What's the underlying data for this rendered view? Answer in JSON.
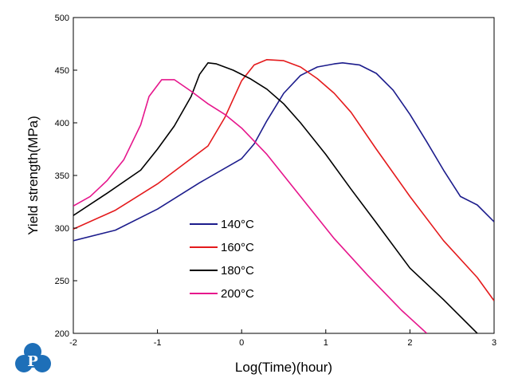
{
  "logo": {
    "letter": "P",
    "color": "#1e6fb8"
  },
  "chart_data": {
    "type": "line",
    "xlabel": "Log(Time)(hour)",
    "ylabel": "Yield strength(MPa)",
    "xlim": [
      -2,
      3
    ],
    "ylim": [
      200,
      500
    ],
    "xticks": [
      -2,
      -1,
      0,
      1,
      2,
      3
    ],
    "yticks": [
      200,
      250,
      300,
      350,
      400,
      450,
      500
    ],
    "grid": false,
    "legend_position": "lower-left",
    "series": [
      {
        "name": "140°C",
        "color": "#1c1c8c",
        "points": [
          [
            -2,
            288
          ],
          [
            -1.5,
            298
          ],
          [
            -1,
            318
          ],
          [
            -0.5,
            343
          ],
          [
            0,
            366
          ],
          [
            0.15,
            380
          ],
          [
            0.3,
            402
          ],
          [
            0.5,
            428
          ],
          [
            0.7,
            445
          ],
          [
            0.9,
            453
          ],
          [
            1.1,
            456
          ],
          [
            1.2,
            457
          ],
          [
            1.4,
            455
          ],
          [
            1.6,
            447
          ],
          [
            1.8,
            431
          ],
          [
            2.0,
            408
          ],
          [
            2.2,
            382
          ],
          [
            2.4,
            355
          ],
          [
            2.6,
            330
          ],
          [
            2.8,
            322
          ],
          [
            3.0,
            306
          ]
        ]
      },
      {
        "name": "160°C",
        "color": "#e41a1c",
        "points": [
          [
            -2,
            299
          ],
          [
            -1.5,
            317
          ],
          [
            -1,
            342
          ],
          [
            -0.6,
            366
          ],
          [
            -0.4,
            378
          ],
          [
            -0.2,
            405
          ],
          [
            0,
            440
          ],
          [
            0.15,
            455
          ],
          [
            0.3,
            460
          ],
          [
            0.5,
            459
          ],
          [
            0.7,
            453
          ],
          [
            0.9,
            442
          ],
          [
            1.1,
            428
          ],
          [
            1.3,
            410
          ],
          [
            1.6,
            375
          ],
          [
            2.0,
            330
          ],
          [
            2.4,
            288
          ],
          [
            2.8,
            253
          ],
          [
            3.0,
            231
          ]
        ]
      },
      {
        "name": "180°C",
        "color": "#000000",
        "points": [
          [
            -2,
            312
          ],
          [
            -1.6,
            333
          ],
          [
            -1.2,
            355
          ],
          [
            -1.0,
            375
          ],
          [
            -0.8,
            397
          ],
          [
            -0.6,
            425
          ],
          [
            -0.5,
            446
          ],
          [
            -0.4,
            457
          ],
          [
            -0.3,
            456
          ],
          [
            -0.1,
            450
          ],
          [
            0.1,
            442
          ],
          [
            0.3,
            432
          ],
          [
            0.5,
            418
          ],
          [
            0.7,
            400
          ],
          [
            1.0,
            370
          ],
          [
            1.3,
            337
          ],
          [
            1.6,
            305
          ],
          [
            2.0,
            262
          ],
          [
            2.4,
            232
          ],
          [
            2.8,
            200
          ]
        ]
      },
      {
        "name": "200°C",
        "color": "#e6168c",
        "points": [
          [
            -2,
            321
          ],
          [
            -1.8,
            330
          ],
          [
            -1.6,
            345
          ],
          [
            -1.4,
            365
          ],
          [
            -1.2,
            398
          ],
          [
            -1.1,
            425
          ],
          [
            -0.95,
            441
          ],
          [
            -0.8,
            441
          ],
          [
            -0.6,
            430
          ],
          [
            -0.4,
            418
          ],
          [
            -0.2,
            408
          ],
          [
            0,
            395
          ],
          [
            0.3,
            370
          ],
          [
            0.7,
            330
          ],
          [
            1.1,
            290
          ],
          [
            1.5,
            255
          ],
          [
            1.9,
            222
          ],
          [
            2.2,
            200
          ]
        ]
      }
    ]
  }
}
